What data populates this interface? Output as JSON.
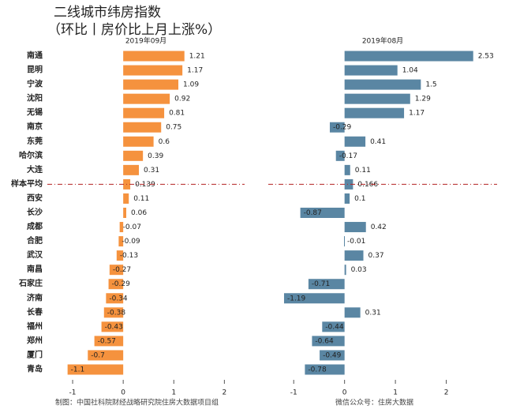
{
  "title": "二线城市纬房指数",
  "subtitle": "（环比丨房价比上月上涨%）",
  "footer_left": "制图：中国社科院财经战略研究院住房大数据项目组",
  "footer_right": "微信公众号：住房大数据",
  "chart_data": [
    {
      "type": "bar",
      "orientation": "horizontal",
      "title": "2019年09月",
      "color": "#f5923e",
      "categories": [
        "南通",
        "昆明",
        "宁波",
        "沈阳",
        "无锡",
        "南京",
        "东莞",
        "哈尔滨",
        "大连",
        "样本平均",
        "西安",
        "长沙",
        "成都",
        "合肥",
        "武汉",
        "南昌",
        "石家庄",
        "济南",
        "长春",
        "福州",
        "郑州",
        "厦门",
        "青岛"
      ],
      "values": [
        1.21,
        1.17,
        1.09,
        0.92,
        0.81,
        0.75,
        0.6,
        0.39,
        0.31,
        0.139,
        0.11,
        0.06,
        -0.07,
        -0.09,
        -0.13,
        -0.27,
        -0.29,
        -0.34,
        -0.38,
        -0.43,
        -0.57,
        -0.7,
        -1.1
      ],
      "xlim": [
        -1.5,
        2.4
      ],
      "xticks": [
        -1,
        0,
        1,
        2
      ],
      "reference_category": 9,
      "reference_color": "#b22222"
    },
    {
      "type": "bar",
      "orientation": "horizontal",
      "title": "2019年08月",
      "color": "#5a86a3",
      "values": [
        2.53,
        1.04,
        1.5,
        1.29,
        1.17,
        -0.29,
        0.41,
        -0.17,
        0.11,
        0.166,
        0.1,
        -0.87,
        0.42,
        -0.01,
        0.37,
        0.03,
        -0.71,
        -1.19,
        0.31,
        -0.44,
        -0.64,
        -0.49,
        -0.78
      ],
      "xlim": [
        -1.5,
        3.0
      ],
      "xticks": [
        -1,
        0,
        1,
        2
      ],
      "reference_category": 9,
      "reference_color": "#b22222"
    }
  ]
}
